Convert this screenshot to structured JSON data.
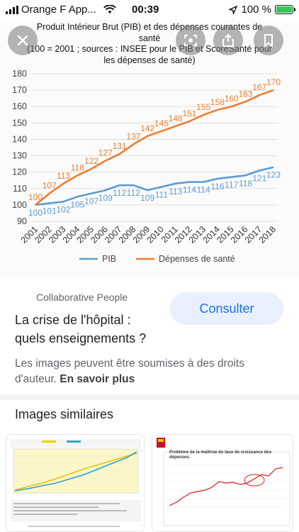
{
  "status_bar": {
    "carrier": "Orange F App...",
    "time": "00:39",
    "battery": "100 %"
  },
  "chart_data": {
    "type": "line",
    "title": "Produit Intérieur Brut (PIB) et des dépenses courantes de santé (100 = 2001 ; sources : INSEE pour le PIB et ScoreSanté pour les dépenses de santé)",
    "title_lines": [
      "Produit Intérieur Brut (PIB) et des dépenses courantes de",
      "santé",
      "(100 = 2001 ; sources : INSEE pour le PIB et ScoreSanté pour",
      "les dépenses de santé)"
    ],
    "categories": [
      "2001",
      "2002",
      "2003",
      "2004",
      "2005",
      "2006",
      "2007",
      "2008",
      "2009",
      "2010",
      "2011",
      "2012",
      "2013",
      "2014",
      "2015",
      "2016",
      "2017",
      "2018"
    ],
    "series": [
      {
        "name": "PIB",
        "color": "#5b9bd5",
        "values": [
          100,
          101,
          102,
          105,
          107,
          109,
          112,
          112,
          109,
          111,
          113,
          114,
          114,
          116,
          117,
          118,
          121,
          123
        ],
        "labels": [
          "100",
          "101",
          "102",
          "105",
          "107",
          "109",
          "112",
          "112",
          "109",
          "111",
          "113",
          "114",
          "114",
          "116",
          "117",
          "118",
          "121",
          "123"
        ]
      },
      {
        "name": "Dépenses de santé",
        "color": "#ed7d31",
        "values": [
          100,
          107,
          113,
          118,
          122,
          127,
          131,
          137,
          142,
          145,
          148,
          151,
          155,
          158,
          160,
          163,
          167,
          170
        ],
        "labels": [
          "100",
          "107",
          "113",
          "118",
          "122",
          "127",
          "131",
          "137",
          "142",
          "145",
          "148",
          "151",
          "155",
          "158",
          "160",
          "163",
          "167",
          "170"
        ]
      }
    ],
    "yticks": [
      "90",
      "100",
      "110",
      "120",
      "130",
      "140",
      "150",
      "160",
      "170",
      "180"
    ],
    "ylim": [
      90,
      180
    ],
    "grid": true,
    "legend": "bottom"
  },
  "overlay": {
    "close_icon": "close-icon",
    "lens_icon": "lens-icon",
    "share_icon": "share-icon",
    "bookmark_icon": "bookmark-icon"
  },
  "result": {
    "source": "Collaborative People",
    "headline": "La crise de l'hôpital : quels enseignements ?",
    "consult_label": "Consulter",
    "copyright_text": "Les images peuvent être soumises à des droits d'auteur.",
    "learn_more": "En savoir plus"
  },
  "similar": {
    "title": "Images similaires",
    "thumb2_title": "Problème de la maîtrise du taux de croissance des dépenses."
  }
}
